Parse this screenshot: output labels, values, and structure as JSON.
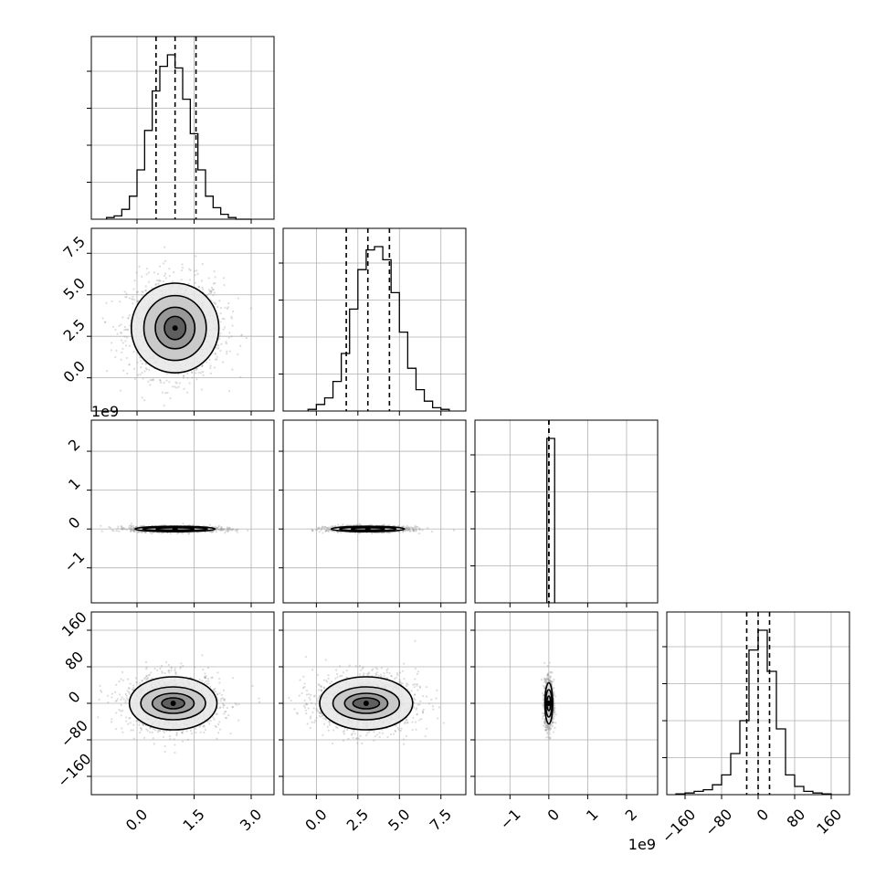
{
  "chart_data": {
    "type": "corner",
    "title": "",
    "grid": true,
    "parameters": [
      {
        "index": 0,
        "range": [
          -1.2,
          3.6
        ],
        "ticks": [
          0.0,
          1.5,
          3.0
        ],
        "tick_labels": [
          "0.0",
          "1.5",
          "3.0"
        ],
        "quantiles": [
          0.5,
          1.0,
          1.55
        ],
        "offset_label": ""
      },
      {
        "index": 1,
        "range": [
          -2.0,
          9.0
        ],
        "ticks": [
          0.0,
          2.5,
          5.0,
          7.5
        ],
        "tick_labels": [
          "0.0",
          "2.5",
          "5.0",
          "7.5"
        ],
        "quantiles": [
          1.8,
          3.1,
          4.4
        ],
        "offset_label": ""
      },
      {
        "index": 2,
        "range": [
          -1.9,
          2.8
        ],
        "ticks": [
          -1,
          0,
          1,
          2
        ],
        "tick_labels": [
          "−1",
          "0",
          "1",
          "2"
        ],
        "quantiles": [
          0.0,
          0.0,
          0.0
        ],
        "offset_label": "1e9"
      },
      {
        "index": 3,
        "range": [
          -200,
          200
        ],
        "ticks": [
          -160,
          -80,
          0,
          80,
          160
        ],
        "tick_labels": [
          "−160",
          "−80",
          "0",
          "80",
          "160"
        ],
        "quantiles": [
          -25,
          0,
          25
        ],
        "offset_label": ""
      }
    ],
    "histograms": [
      {
        "param": 0,
        "bin_edges": [
          -0.8,
          -0.6,
          -0.4,
          -0.2,
          0.0,
          0.2,
          0.4,
          0.6,
          0.8,
          1.0,
          1.2,
          1.4,
          1.6,
          1.8,
          2.0,
          2.2,
          2.4,
          2.6,
          2.8,
          3.0
        ],
        "counts": [
          0.01,
          0.02,
          0.06,
          0.14,
          0.3,
          0.54,
          0.78,
          0.93,
          1.0,
          0.92,
          0.73,
          0.52,
          0.3,
          0.14,
          0.07,
          0.03,
          0.01,
          0.0,
          0.0
        ]
      },
      {
        "param": 1,
        "bin_edges": [
          -0.5,
          0.0,
          0.5,
          1.0,
          1.5,
          2.0,
          2.5,
          3.0,
          3.5,
          4.0,
          4.5,
          5.0,
          5.5,
          6.0,
          6.5,
          7.0,
          7.5,
          8.0
        ],
        "counts": [
          0.01,
          0.04,
          0.08,
          0.18,
          0.35,
          0.62,
          0.86,
          0.98,
          1.0,
          0.92,
          0.72,
          0.48,
          0.26,
          0.13,
          0.06,
          0.02,
          0.01
        ]
      },
      {
        "param": 2,
        "bin_edges": [
          -0.05,
          0.05,
          0.15
        ],
        "counts": [
          1.0,
          1.0
        ]
      },
      {
        "param": 3,
        "bin_edges": [
          -180,
          -160,
          -140,
          -120,
          -100,
          -80,
          -60,
          -40,
          -20,
          0,
          20,
          40,
          60,
          80,
          100,
          120,
          140,
          160
        ],
        "counts": [
          0.005,
          0.01,
          0.02,
          0.03,
          0.06,
          0.12,
          0.25,
          0.45,
          0.88,
          1.0,
          0.75,
          0.4,
          0.12,
          0.05,
          0.02,
          0.01,
          0.005
        ]
      }
    ],
    "scatter_panels": [
      {
        "x_param": 0,
        "y_param": 1,
        "center": [
          1.0,
          3.0
        ],
        "contour_radii": [
          [
            0.28,
            0.7
          ],
          [
            0.52,
            1.25
          ],
          [
            0.82,
            1.95
          ],
          [
            1.15,
            2.7
          ]
        ]
      },
      {
        "x_param": 0,
        "y_param": 2,
        "center": [
          1.0,
          0.0
        ],
        "contour_radii": [
          [
            0.5,
            0.025
          ],
          [
            0.85,
            0.045
          ],
          [
            1.05,
            0.07
          ]
        ]
      },
      {
        "x_param": 1,
        "y_param": 2,
        "center": [
          3.1,
          0.0
        ],
        "contour_radii": [
          [
            1.0,
            0.03
          ],
          [
            1.7,
            0.05
          ],
          [
            2.2,
            0.07
          ]
        ]
      },
      {
        "x_param": 0,
        "y_param": 3,
        "center": [
          0.95,
          0.0
        ],
        "contour_radii": [
          [
            0.3,
            12
          ],
          [
            0.55,
            22
          ],
          [
            0.85,
            36
          ],
          [
            1.15,
            58
          ]
        ]
      },
      {
        "x_param": 1,
        "y_param": 3,
        "center": [
          3.0,
          0.0
        ],
        "contour_radii": [
          [
            0.8,
            12
          ],
          [
            1.3,
            22
          ],
          [
            2.0,
            36
          ],
          [
            2.8,
            58
          ]
        ]
      },
      {
        "x_param": 2,
        "y_param": 3,
        "center": [
          0.0,
          0.0
        ],
        "contour_radii": [
          [
            0.05,
            16
          ],
          [
            0.08,
            30
          ],
          [
            0.1,
            45
          ]
        ]
      }
    ]
  }
}
